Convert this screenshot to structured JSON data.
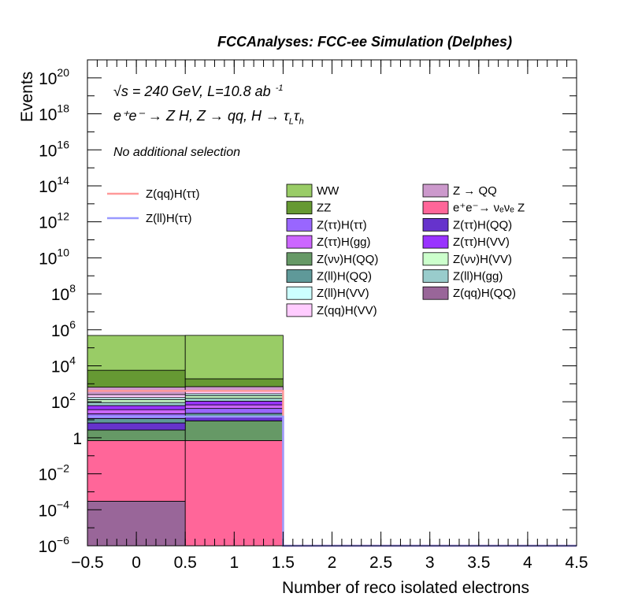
{
  "header": {
    "title": "FCCAnalyses: FCC-ee Simulation (Delphes)"
  },
  "annotations": {
    "sqrt_s": "√s = 240 GeV, L=10.8 ab",
    "lumi_exp": "-1",
    "process": "e⁺e⁻ → Z H, Z → qq, H → τ",
    "tau_sub_1": "L",
    "tau_sym": "τ",
    "tau_sub_2": "h",
    "selection": "No additional selection"
  },
  "colors": {
    "WW": "#99cc66",
    "ZZ": "#669933",
    "Z(ττ)H(ττ)": "#9966ff",
    "Z(ττ)H(gg)": "#cc66ff",
    "Z(νν)H(QQ)": "#669966",
    "Z(ll)H(QQ)": "#5f9999",
    "Z(ll)H(VV)": "#ccffff",
    "Z(qq)H(VV)": "#ffccff",
    "Z → QQ": "#cc99cc",
    "e⁺e⁻→ νₑνₑ Z": "#ff6699",
    "Z(ττ)H(QQ)": "#6633cc",
    "Z(ττ)H(VV)": "#9933ff",
    "Z(νν)H(VV)": "#ccffcc",
    "Z(ll)H(gg)": "#99cccc",
    "Z(qq)H(QQ)": "#996699",
    "signal_qq": "#ff9999",
    "signal_ll": "#9999ff"
  },
  "chart_data": {
    "type": "bar",
    "stacked": true,
    "xlabel": "Number of reco isolated electrons",
    "ylabel": "Events",
    "xlim": [
      -0.5,
      4.5
    ],
    "ylim": [
      1e-06,
      1e+21
    ],
    "log_y": true,
    "bin_edges": [
      -0.5,
      0.5,
      1.5,
      2.5,
      3.5,
      4.5
    ],
    "x_ticks": [
      "−0.5",
      "0",
      "0.5",
      "1",
      "1.5",
      "2",
      "2.5",
      "3",
      "3.5",
      "4",
      "4.5"
    ],
    "y_ticks": [
      {
        "base": "10",
        "exp": "−6"
      },
      {
        "base": "10",
        "exp": "−4"
      },
      {
        "base": "10",
        "exp": "−2"
      },
      {
        "base": "1",
        "exp": ""
      },
      {
        "base": "10",
        "exp": "2"
      },
      {
        "base": "10",
        "exp": "4"
      },
      {
        "base": "10",
        "exp": "6"
      },
      {
        "base": "10",
        "exp": "8"
      },
      {
        "base": "10",
        "exp": "10"
      },
      {
        "base": "10",
        "exp": "12"
      },
      {
        "base": "10",
        "exp": "14"
      },
      {
        "base": "10",
        "exp": "16"
      },
      {
        "base": "10",
        "exp": "18"
      },
      {
        "base": "10",
        "exp": "20"
      }
    ],
    "stack_series": [
      {
        "name": "Z(qq)H(QQ)",
        "values": [
          0.0003,
          0,
          0,
          0,
          0
        ]
      },
      {
        "name": "e⁺e⁻→ νₑνₑ Z",
        "values": [
          0.7,
          0.7,
          0,
          0,
          0
        ]
      },
      {
        "name": "Z(νν)H(QQ)",
        "values": [
          2,
          8,
          0,
          0,
          0
        ]
      },
      {
        "name": "Z(ττ)H(QQ)",
        "values": [
          4,
          6,
          0,
          0,
          0
        ]
      },
      {
        "name": "Z(ll)H(QQ)",
        "values": [
          5,
          8,
          0,
          0,
          0
        ]
      },
      {
        "name": "Z(ττ)H(ττ)",
        "values": [
          10,
          20,
          0,
          0,
          0
        ]
      },
      {
        "name": "Z(ττ)H(gg)",
        "values": [
          15,
          25,
          0,
          0,
          0
        ]
      },
      {
        "name": "Z(ττ)H(VV)",
        "values": [
          25,
          40,
          0,
          0,
          0
        ]
      },
      {
        "name": "Z(ll)H(gg)",
        "values": [
          30,
          50,
          0,
          0,
          0
        ]
      },
      {
        "name": "Z(νν)H(VV)",
        "values": [
          40,
          60,
          0,
          0,
          0
        ]
      },
      {
        "name": "Z(ll)H(VV)",
        "values": [
          40,
          60,
          0,
          0,
          0
        ]
      },
      {
        "name": "Z(qq)H(VV)",
        "values": [
          80,
          120,
          0,
          0,
          0
        ]
      },
      {
        "name": "Z → QQ",
        "values": [
          400,
          300,
          0,
          0,
          0
        ]
      },
      {
        "name": "ZZ",
        "values": [
          5000,
          1200,
          0,
          0,
          0
        ]
      },
      {
        "name": "WW",
        "values": [
          480000,
          490000,
          0,
          0,
          0
        ]
      }
    ],
    "line_series": [
      {
        "name": "Z(qq)H(ττ)",
        "values": [
          400,
          400,
          1e-06,
          1e-06,
          1e-06
        ]
      },
      {
        "name": "Z(ll)H(ττ)",
        "values": [
          15,
          15,
          1e-06,
          1e-06,
          1e-06
        ]
      }
    ],
    "legend": {
      "lines": [
        "Z(qq)H(ττ)",
        "Z(ll)H(ττ)"
      ],
      "col1": [
        "WW",
        "ZZ",
        "Z(ττ)H(ττ)",
        "Z(ττ)H(gg)",
        "Z(νν)H(QQ)",
        "Z(ll)H(QQ)",
        "Z(ll)H(VV)",
        "Z(qq)H(VV)"
      ],
      "col2": [
        "Z → QQ",
        "e⁺e⁻→ νₑνₑ Z",
        "Z(ττ)H(QQ)",
        "Z(ττ)H(VV)",
        "Z(νν)H(VV)",
        "Z(ll)H(gg)",
        "Z(qq)H(QQ)"
      ]
    }
  }
}
